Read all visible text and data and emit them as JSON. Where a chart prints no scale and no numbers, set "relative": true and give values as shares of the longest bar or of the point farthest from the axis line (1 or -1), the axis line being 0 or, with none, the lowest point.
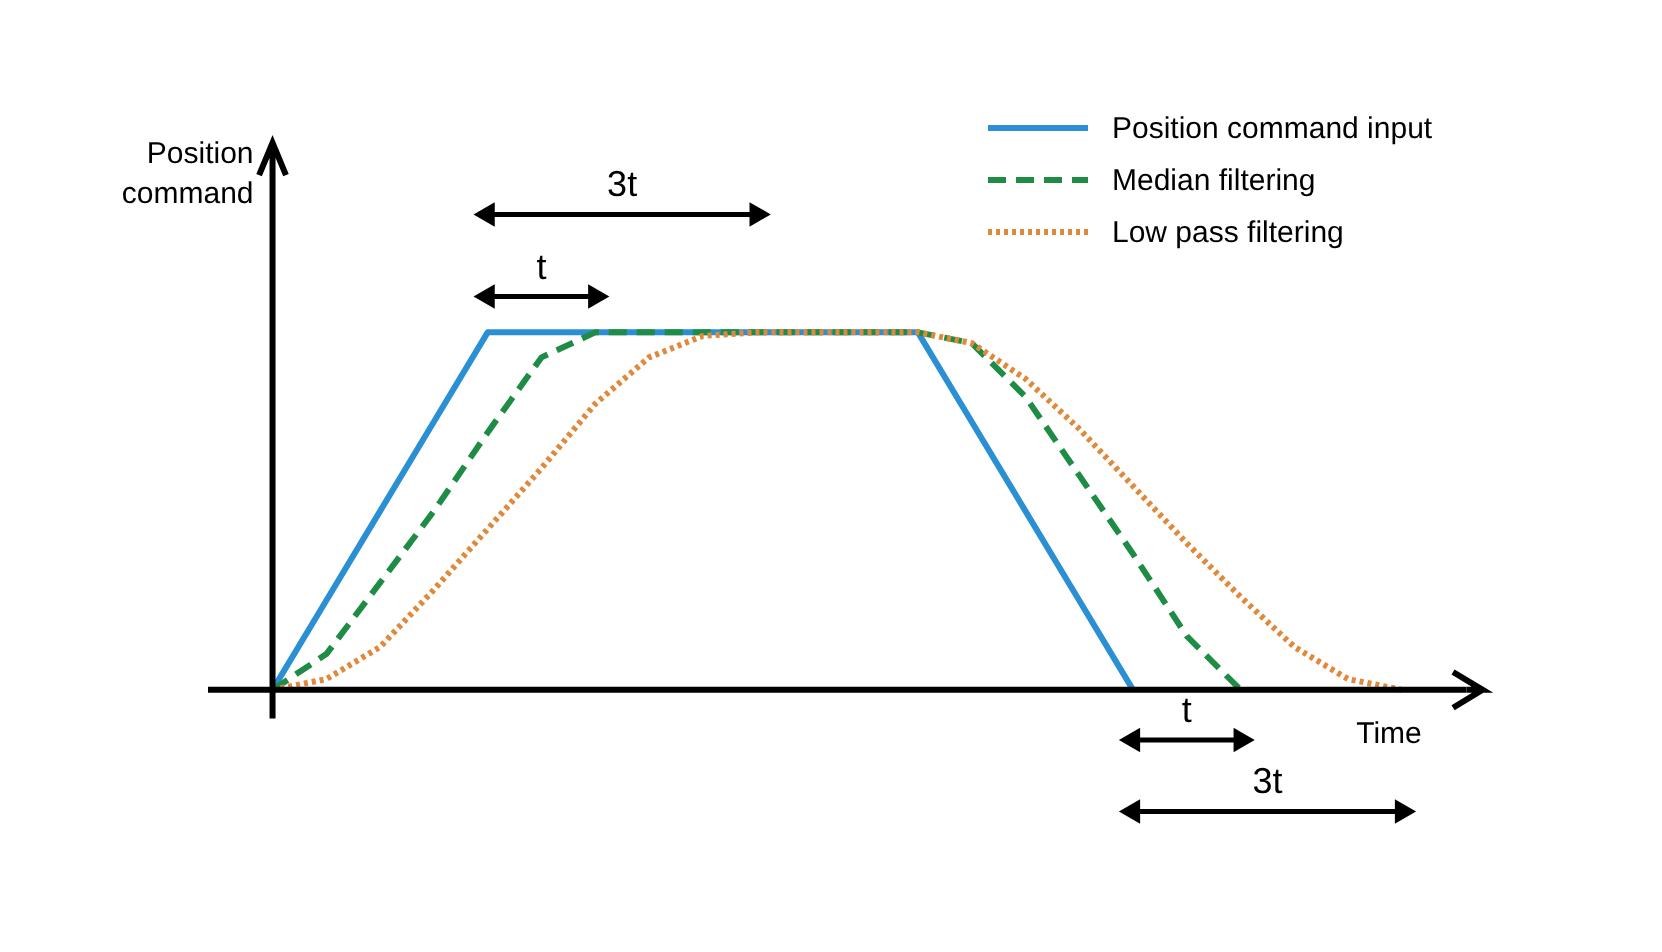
{
  "chart_data": {
    "type": "line",
    "relative": true,
    "xlabel": "Time",
    "ylabel": "Position command",
    "legend": "top right",
    "grid": false,
    "marker": "none",
    "categories": [
      null,
      null,
      null,
      null,
      null,
      null,
      null,
      null,
      null,
      null,
      null,
      null,
      null,
      null,
      null,
      null,
      null,
      null,
      null,
      null,
      null,
      null
    ],
    "series": [
      {
        "name": "Position command input",
        "color": "#2b8fd3",
        "line_style": "solid",
        "values": [
          0,
          0.25,
          0.5,
          0.75,
          1,
          1,
          1,
          1,
          1,
          1,
          1,
          1,
          1,
          0.75,
          0.5,
          0.25,
          0,
          null,
          null,
          null,
          null,
          null
        ]
      },
      {
        "name": "Median filtering",
        "color": "#1f8c45",
        "line_style": "dashed",
        "values": [
          0,
          0.1,
          0.3,
          0.5,
          0.72,
          0.93,
          1,
          1,
          1,
          1,
          1,
          1,
          1,
          0.97,
          0.82,
          0.6,
          0.38,
          0.15,
          0,
          null,
          null,
          null
        ]
      },
      {
        "name": "Low pass filtering",
        "color": "#e0893a",
        "line_style": "dotted",
        "values": [
          0,
          0.03,
          0.12,
          0.28,
          0.45,
          0.62,
          0.8,
          0.93,
          0.99,
          1,
          1,
          1,
          1,
          0.97,
          0.87,
          0.73,
          0.57,
          0.41,
          0.26,
          0.12,
          0.03,
          0
        ]
      }
    ],
    "annotations": [
      "t",
      "3t",
      "t",
      "3t"
    ]
  }
}
